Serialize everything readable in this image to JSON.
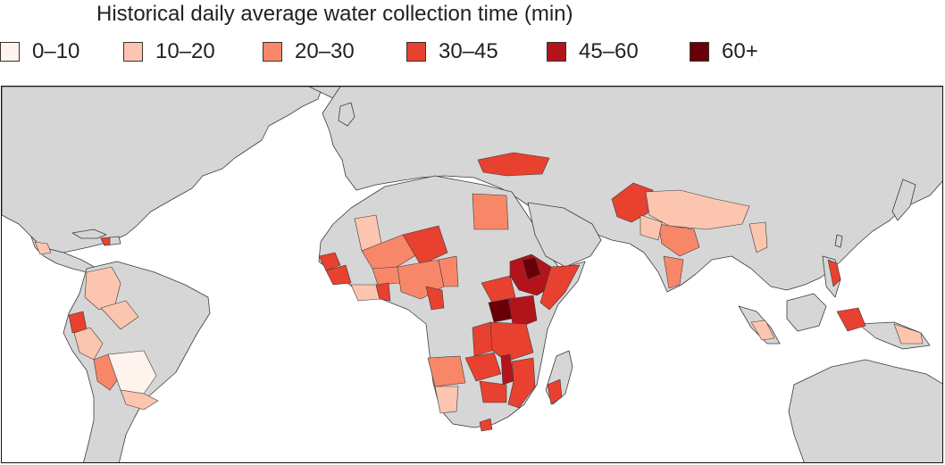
{
  "title": "Historical daily average water collection time (min)",
  "legend": {
    "items": [
      {
        "label": "0–10",
        "color": "#fff3ee"
      },
      {
        "label": "10–20",
        "color": "#fcc5af"
      },
      {
        "label": "20–30",
        "color": "#f8876a"
      },
      {
        "label": "30–45",
        "color": "#e8412f"
      },
      {
        "label": "45–60",
        "color": "#b3141b"
      },
      {
        "label": "60+",
        "color": "#690008"
      }
    ]
  },
  "map": {
    "land_color": "#d6d6d6",
    "border_color": "#3c3c3c",
    "ocean_color": "#ffffff"
  }
}
